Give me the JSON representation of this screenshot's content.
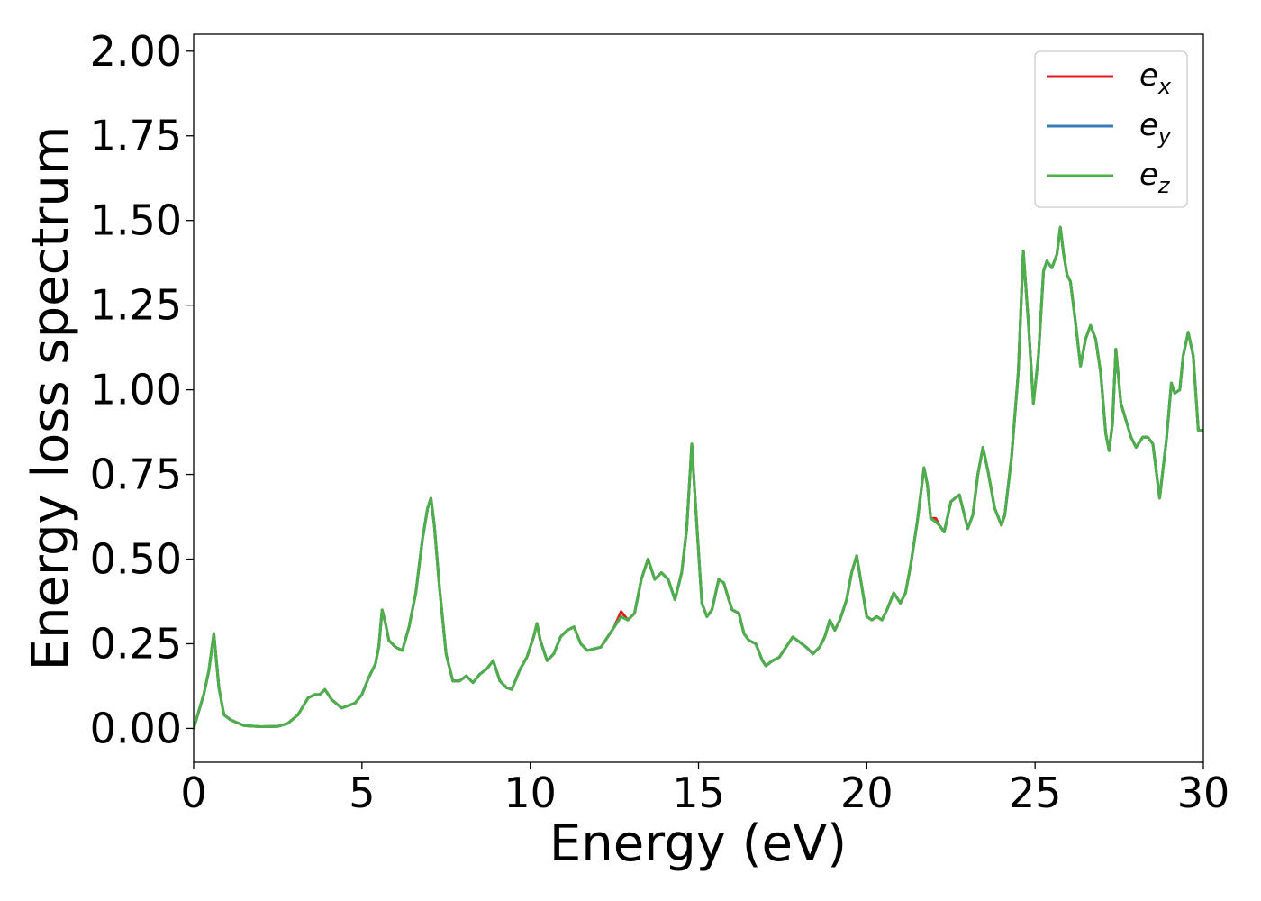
{
  "chart_data": {
    "type": "line",
    "xlabel": "Energy (eV)",
    "ylabel": "Energy loss spectrum",
    "xlim": [
      0,
      30
    ],
    "ylim": [
      -0.1,
      2.05
    ],
    "xticks": [
      0,
      5,
      10,
      15,
      20,
      25,
      30
    ],
    "xtick_labels": [
      "0",
      "5",
      "10",
      "15",
      "20",
      "25",
      "30"
    ],
    "yticks": [
      0.0,
      0.25,
      0.5,
      0.75,
      1.0,
      1.25,
      1.5,
      1.75,
      2.0
    ],
    "ytick_labels": [
      "0.00",
      "0.25",
      "0.50",
      "0.75",
      "1.00",
      "1.25",
      "1.50",
      "1.75",
      "2.00"
    ],
    "grid": false,
    "legend_position": "top-right",
    "series": [
      {
        "name": "e_x",
        "legend_base": "e",
        "legend_sub": "x",
        "color": "#e41a1c",
        "x": [
          0,
          0.3,
          0.45,
          0.6,
          0.75,
          0.9,
          1.1,
          1.5,
          2.0,
          2.5,
          2.8,
          3.1,
          3.4,
          3.6,
          3.75,
          3.9,
          4.1,
          4.4,
          4.8,
          5.0,
          5.2,
          5.4,
          5.5,
          5.6,
          5.7,
          5.8,
          6.0,
          6.2,
          6.4,
          6.6,
          6.8,
          6.95,
          7.05,
          7.15,
          7.3,
          7.5,
          7.7,
          7.9,
          8.1,
          8.3,
          8.5,
          8.7,
          8.9,
          9.1,
          9.3,
          9.45,
          9.7,
          9.9,
          10.1,
          10.2,
          10.3,
          10.5,
          10.7,
          10.9,
          11.1,
          11.3,
          11.5,
          11.7,
          11.9,
          12.1,
          12.3,
          12.5,
          12.7,
          12.9,
          13.1,
          13.3,
          13.5,
          13.7,
          13.9,
          14.1,
          14.3,
          14.5,
          14.65,
          14.8,
          14.95,
          15.1,
          15.25,
          15.4,
          15.6,
          15.75,
          15.9,
          16.0,
          16.2,
          16.35,
          16.5,
          16.7,
          16.9,
          17.0,
          17.2,
          17.4,
          17.6,
          17.8,
          18.0,
          18.2,
          18.4,
          18.6,
          18.75,
          18.9,
          19.05,
          19.2,
          19.4,
          19.55,
          19.7,
          19.85,
          20.0,
          20.15,
          20.3,
          20.45,
          20.6,
          20.8,
          21.0,
          21.15,
          21.3,
          21.5,
          21.7,
          21.8,
          21.9,
          22.05,
          22.15,
          22.3,
          22.5,
          22.75,
          22.85,
          23.0,
          23.15,
          23.3,
          23.45,
          23.6,
          23.8,
          24.0,
          24.1,
          24.3,
          24.5,
          24.65,
          24.8,
          24.95,
          25.1,
          25.25,
          25.35,
          25.5,
          25.65,
          25.75,
          25.85,
          25.95,
          26.05,
          26.2,
          26.35,
          26.5,
          26.65,
          26.8,
          26.95,
          27.1,
          27.2,
          27.3,
          27.4,
          27.55,
          27.7,
          27.85,
          28.0,
          28.2,
          28.35,
          28.5,
          28.7,
          28.9,
          29.05,
          29.15,
          29.3,
          29.4,
          29.55,
          29.7,
          29.85,
          30.0
        ],
        "y": [
          0.0,
          0.1,
          0.17,
          0.28,
          0.12,
          0.04,
          0.025,
          0.008,
          0.005,
          0.006,
          0.015,
          0.04,
          0.09,
          0.1,
          0.1,
          0.115,
          0.085,
          0.06,
          0.075,
          0.1,
          0.15,
          0.19,
          0.24,
          0.35,
          0.31,
          0.26,
          0.24,
          0.23,
          0.3,
          0.4,
          0.56,
          0.65,
          0.68,
          0.6,
          0.42,
          0.22,
          0.14,
          0.14,
          0.155,
          0.135,
          0.16,
          0.175,
          0.2,
          0.14,
          0.12,
          0.115,
          0.175,
          0.21,
          0.27,
          0.31,
          0.26,
          0.2,
          0.22,
          0.27,
          0.29,
          0.3,
          0.25,
          0.23,
          0.235,
          0.24,
          0.27,
          0.3,
          0.345,
          0.32,
          0.34,
          0.44,
          0.5,
          0.44,
          0.46,
          0.44,
          0.38,
          0.46,
          0.59,
          0.84,
          0.6,
          0.37,
          0.33,
          0.35,
          0.44,
          0.43,
          0.38,
          0.35,
          0.34,
          0.28,
          0.26,
          0.25,
          0.2,
          0.185,
          0.2,
          0.21,
          0.24,
          0.27,
          0.255,
          0.24,
          0.22,
          0.24,
          0.27,
          0.32,
          0.29,
          0.32,
          0.38,
          0.46,
          0.51,
          0.42,
          0.33,
          0.32,
          0.33,
          0.32,
          0.35,
          0.4,
          0.37,
          0.4,
          0.48,
          0.61,
          0.77,
          0.72,
          0.62,
          0.62,
          0.6,
          0.58,
          0.67,
          0.69,
          0.65,
          0.59,
          0.63,
          0.75,
          0.83,
          0.76,
          0.65,
          0.6,
          0.63,
          0.8,
          1.05,
          1.41,
          1.2,
          0.96,
          1.1,
          1.35,
          1.38,
          1.36,
          1.4,
          1.48,
          1.4,
          1.34,
          1.32,
          1.2,
          1.07,
          1.15,
          1.19,
          1.15,
          1.05,
          0.87,
          0.82,
          0.9,
          1.12,
          0.96,
          0.91,
          0.86,
          0.83,
          0.86,
          0.86,
          0.84,
          0.68,
          0.85,
          1.02,
          0.99,
          1.0,
          1.1,
          1.17,
          1.1,
          0.88,
          0.88
        ]
      },
      {
        "name": "e_y",
        "legend_base": "e",
        "legend_sub": "y",
        "color": "#377eb8",
        "x": [
          0,
          0.3,
          0.45,
          0.6,
          0.75,
          0.9,
          1.1,
          1.5,
          2.0,
          2.5,
          2.8,
          3.1,
          3.4,
          3.6,
          3.75,
          3.9,
          4.1,
          4.4,
          4.8,
          5.0,
          5.2,
          5.4,
          5.5,
          5.6,
          5.7,
          5.8,
          6.0,
          6.2,
          6.4,
          6.6,
          6.8,
          6.95,
          7.05,
          7.15,
          7.3,
          7.5,
          7.7,
          7.9,
          8.1,
          8.3,
          8.5,
          8.7,
          8.9,
          9.1,
          9.3,
          9.45,
          9.7,
          9.9,
          10.1,
          10.2,
          10.3,
          10.5,
          10.7,
          10.9,
          11.1,
          11.3,
          11.5,
          11.7,
          11.9,
          12.1,
          12.3,
          12.5,
          12.7,
          12.9,
          13.1,
          13.3,
          13.5,
          13.7,
          13.9,
          14.1,
          14.3,
          14.5,
          14.65,
          14.8,
          14.95,
          15.1,
          15.25,
          15.4,
          15.6,
          15.75,
          15.9,
          16.0,
          16.2,
          16.35,
          16.5,
          16.7,
          16.9,
          17.0,
          17.2,
          17.4,
          17.6,
          17.8,
          18.0,
          18.2,
          18.4,
          18.6,
          18.75,
          18.9,
          19.05,
          19.2,
          19.4,
          19.55,
          19.7,
          19.85,
          20.0,
          20.15,
          20.3,
          20.45,
          20.6,
          20.8,
          21.0,
          21.15,
          21.3,
          21.5,
          21.7,
          21.8,
          21.9,
          22.05,
          22.15,
          22.3,
          22.5,
          22.75,
          22.85,
          23.0,
          23.15,
          23.3,
          23.45,
          23.6,
          23.8,
          24.0,
          24.1,
          24.3,
          24.5,
          24.65,
          24.8,
          24.95,
          25.1,
          25.25,
          25.35,
          25.5,
          25.65,
          25.75,
          25.85,
          25.95,
          26.05,
          26.2,
          26.35,
          26.5,
          26.65,
          26.8,
          26.95,
          27.1,
          27.2,
          27.3,
          27.4,
          27.55,
          27.7,
          27.85,
          28.0,
          28.2,
          28.35,
          28.5,
          28.7,
          28.9,
          29.05,
          29.15,
          29.3,
          29.4,
          29.55,
          29.7,
          29.85,
          30.0
        ],
        "y": [
          0.0,
          0.1,
          0.17,
          0.28,
          0.12,
          0.04,
          0.025,
          0.008,
          0.005,
          0.006,
          0.015,
          0.04,
          0.09,
          0.1,
          0.1,
          0.115,
          0.085,
          0.06,
          0.075,
          0.1,
          0.15,
          0.19,
          0.24,
          0.35,
          0.31,
          0.26,
          0.24,
          0.23,
          0.3,
          0.4,
          0.56,
          0.65,
          0.68,
          0.6,
          0.42,
          0.22,
          0.14,
          0.14,
          0.155,
          0.135,
          0.16,
          0.175,
          0.2,
          0.14,
          0.12,
          0.115,
          0.175,
          0.21,
          0.27,
          0.31,
          0.26,
          0.2,
          0.22,
          0.27,
          0.29,
          0.3,
          0.25,
          0.23,
          0.235,
          0.24,
          0.27,
          0.3,
          0.33,
          0.32,
          0.34,
          0.44,
          0.5,
          0.44,
          0.46,
          0.44,
          0.38,
          0.46,
          0.59,
          0.84,
          0.6,
          0.37,
          0.33,
          0.35,
          0.44,
          0.43,
          0.38,
          0.35,
          0.34,
          0.28,
          0.26,
          0.25,
          0.2,
          0.185,
          0.2,
          0.21,
          0.24,
          0.27,
          0.255,
          0.24,
          0.22,
          0.24,
          0.27,
          0.32,
          0.29,
          0.32,
          0.38,
          0.46,
          0.51,
          0.42,
          0.33,
          0.32,
          0.33,
          0.32,
          0.35,
          0.4,
          0.37,
          0.4,
          0.48,
          0.61,
          0.77,
          0.72,
          0.62,
          0.61,
          0.6,
          0.58,
          0.67,
          0.69,
          0.65,
          0.59,
          0.63,
          0.75,
          0.83,
          0.76,
          0.65,
          0.6,
          0.63,
          0.8,
          1.05,
          1.41,
          1.2,
          0.96,
          1.1,
          1.35,
          1.38,
          1.36,
          1.4,
          1.48,
          1.4,
          1.34,
          1.32,
          1.2,
          1.07,
          1.15,
          1.19,
          1.15,
          1.05,
          0.87,
          0.82,
          0.9,
          1.12,
          0.96,
          0.91,
          0.86,
          0.83,
          0.86,
          0.86,
          0.84,
          0.68,
          0.85,
          1.02,
          0.99,
          1.0,
          1.1,
          1.17,
          1.1,
          0.88,
          0.88
        ]
      },
      {
        "name": "e_z",
        "legend_base": "e",
        "legend_sub": "z",
        "color": "#4daf4a",
        "x": [
          0,
          0.3,
          0.45,
          0.6,
          0.75,
          0.9,
          1.1,
          1.5,
          2.0,
          2.5,
          2.8,
          3.1,
          3.4,
          3.6,
          3.75,
          3.9,
          4.1,
          4.4,
          4.8,
          5.0,
          5.2,
          5.4,
          5.5,
          5.6,
          5.7,
          5.8,
          6.0,
          6.2,
          6.4,
          6.6,
          6.8,
          6.95,
          7.05,
          7.15,
          7.3,
          7.5,
          7.7,
          7.9,
          8.1,
          8.3,
          8.5,
          8.7,
          8.9,
          9.1,
          9.3,
          9.45,
          9.7,
          9.9,
          10.1,
          10.2,
          10.3,
          10.5,
          10.7,
          10.9,
          11.1,
          11.3,
          11.5,
          11.7,
          11.9,
          12.1,
          12.3,
          12.5,
          12.7,
          12.9,
          13.1,
          13.3,
          13.5,
          13.7,
          13.9,
          14.1,
          14.3,
          14.5,
          14.65,
          14.8,
          14.95,
          15.1,
          15.25,
          15.4,
          15.6,
          15.75,
          15.9,
          16.0,
          16.2,
          16.35,
          16.5,
          16.7,
          16.9,
          17.0,
          17.2,
          17.4,
          17.6,
          17.8,
          18.0,
          18.2,
          18.4,
          18.6,
          18.75,
          18.9,
          19.05,
          19.2,
          19.4,
          19.55,
          19.7,
          19.85,
          20.0,
          20.15,
          20.3,
          20.45,
          20.6,
          20.8,
          21.0,
          21.15,
          21.3,
          21.5,
          21.7,
          21.8,
          21.9,
          22.05,
          22.15,
          22.3,
          22.5,
          22.75,
          22.85,
          23.0,
          23.15,
          23.3,
          23.45,
          23.6,
          23.8,
          24.0,
          24.1,
          24.3,
          24.5,
          24.65,
          24.8,
          24.95,
          25.1,
          25.25,
          25.35,
          25.5,
          25.65,
          25.75,
          25.85,
          25.95,
          26.05,
          26.2,
          26.35,
          26.5,
          26.65,
          26.8,
          26.95,
          27.1,
          27.2,
          27.3,
          27.4,
          27.55,
          27.7,
          27.85,
          28.0,
          28.2,
          28.35,
          28.5,
          28.7,
          28.9,
          29.05,
          29.15,
          29.3,
          29.4,
          29.55,
          29.7,
          29.85,
          30.0
        ],
        "y": [
          0.0,
          0.1,
          0.17,
          0.28,
          0.12,
          0.04,
          0.025,
          0.008,
          0.005,
          0.006,
          0.015,
          0.04,
          0.09,
          0.1,
          0.1,
          0.115,
          0.085,
          0.06,
          0.075,
          0.1,
          0.15,
          0.19,
          0.24,
          0.35,
          0.31,
          0.26,
          0.24,
          0.23,
          0.3,
          0.4,
          0.56,
          0.65,
          0.68,
          0.6,
          0.42,
          0.22,
          0.14,
          0.14,
          0.155,
          0.135,
          0.16,
          0.175,
          0.2,
          0.14,
          0.12,
          0.115,
          0.175,
          0.21,
          0.27,
          0.31,
          0.26,
          0.2,
          0.22,
          0.27,
          0.29,
          0.3,
          0.25,
          0.23,
          0.235,
          0.24,
          0.27,
          0.3,
          0.33,
          0.32,
          0.34,
          0.44,
          0.5,
          0.44,
          0.46,
          0.44,
          0.38,
          0.46,
          0.59,
          0.84,
          0.6,
          0.37,
          0.33,
          0.35,
          0.44,
          0.43,
          0.38,
          0.35,
          0.34,
          0.28,
          0.26,
          0.25,
          0.2,
          0.185,
          0.2,
          0.21,
          0.24,
          0.27,
          0.255,
          0.24,
          0.22,
          0.24,
          0.27,
          0.32,
          0.29,
          0.32,
          0.38,
          0.46,
          0.51,
          0.42,
          0.33,
          0.32,
          0.33,
          0.32,
          0.35,
          0.4,
          0.37,
          0.4,
          0.48,
          0.61,
          0.77,
          0.72,
          0.62,
          0.61,
          0.6,
          0.58,
          0.67,
          0.69,
          0.65,
          0.59,
          0.63,
          0.75,
          0.83,
          0.76,
          0.65,
          0.6,
          0.63,
          0.8,
          1.05,
          1.41,
          1.2,
          0.96,
          1.1,
          1.35,
          1.38,
          1.36,
          1.4,
          1.48,
          1.4,
          1.34,
          1.32,
          1.2,
          1.07,
          1.15,
          1.19,
          1.15,
          1.05,
          0.87,
          0.82,
          0.9,
          1.12,
          0.96,
          0.91,
          0.86,
          0.83,
          0.86,
          0.86,
          0.84,
          0.68,
          0.85,
          1.02,
          0.99,
          1.0,
          1.1,
          1.17,
          1.1,
          0.88,
          0.88
        ]
      }
    ]
  }
}
